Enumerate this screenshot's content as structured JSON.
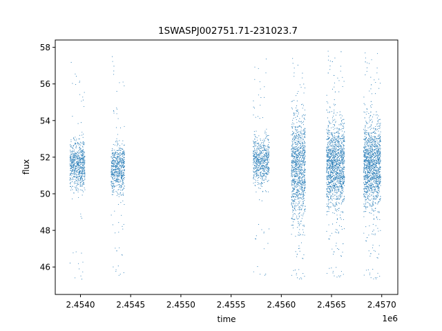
{
  "chart_data": {
    "type": "scatter",
    "title": "1SWASPJ002751.71-231023.7",
    "xlabel": "time",
    "ylabel": "flux",
    "x_offset_label": "1e6",
    "xlim": [
      2453749,
      2457160
    ],
    "ylim": [
      44.5,
      58.4
    ],
    "x_ticks": [
      2.454,
      2.4545,
      2.455,
      2.4555,
      2.456,
      2.4565,
      2.457
    ],
    "x_tick_labels": [
      "2.4540",
      "2.4545",
      "2.4550",
      "2.4555",
      "2.4560",
      "2.4565",
      "2.4570"
    ],
    "y_ticks": [
      46,
      48,
      50,
      52,
      54,
      56,
      58
    ],
    "y_tick_labels": [
      "46",
      "48",
      "50",
      "52",
      "54",
      "56",
      "58"
    ],
    "grid": false,
    "point_color": "#1f77b4",
    "series": [
      {
        "segments": [
          {
            "x_start": 2453895,
            "x_end": 2454045,
            "center": 51.6,
            "core_spread": 0.9,
            "tail_min": 45.2,
            "tail_max": 57.2,
            "count": 700
          },
          {
            "x_start": 2454305,
            "x_end": 2454440,
            "center": 51.4,
            "core_spread": 0.9,
            "tail_min": 45.4,
            "tail_max": 57.5,
            "count": 650
          },
          {
            "x_start": 2455720,
            "x_end": 2455880,
            "center": 51.8,
            "core_spread": 0.9,
            "tail_min": 45.4,
            "tail_max": 57.4,
            "count": 650
          },
          {
            "x_start": 2456100,
            "x_end": 2456240,
            "center": 51.5,
            "core_spread": 2.0,
            "tail_min": 45.2,
            "tail_max": 57.4,
            "count": 1100
          },
          {
            "x_start": 2456450,
            "x_end": 2456630,
            "center": 51.6,
            "core_spread": 1.6,
            "tail_min": 45.3,
            "tail_max": 57.8,
            "count": 1500
          },
          {
            "x_start": 2456820,
            "x_end": 2456990,
            "center": 51.6,
            "core_spread": 1.6,
            "tail_min": 45.2,
            "tail_max": 57.7,
            "count": 1500
          }
        ]
      }
    ]
  }
}
